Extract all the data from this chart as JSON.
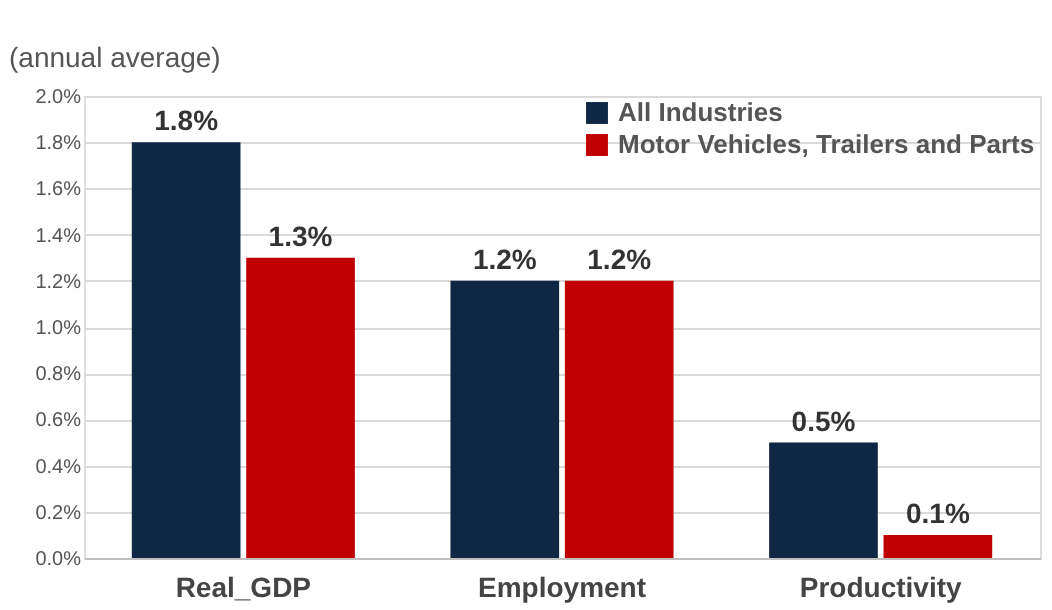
{
  "chart_data": {
    "type": "bar",
    "ylabel": "(annual average)",
    "categories": [
      "Real_GDP",
      "Employment",
      "Productivity"
    ],
    "series": [
      {
        "name": "All Industries",
        "color": "#0f2744",
        "values": [
          1.8,
          1.2,
          0.5
        ],
        "value_labels": [
          "1.8%",
          "1.2%",
          "0.5%"
        ]
      },
      {
        "name": "Motor Vehicles, Trailers and Parts",
        "color": "#c00000",
        "values": [
          1.3,
          1.2,
          0.1
        ],
        "value_labels": [
          "1.3%",
          "1.2%",
          "0.1%"
        ]
      }
    ],
    "ylim": [
      0,
      2.0
    ],
    "yticks": [
      {
        "value": 0,
        "label": "0.0%"
      },
      {
        "value": 0.2,
        "label": "0.2%"
      },
      {
        "value": 0.4,
        "label": "0.4%"
      },
      {
        "value": 0.6,
        "label": "0.6%"
      },
      {
        "value": 0.8,
        "label": "0.8%"
      },
      {
        "value": 1.0,
        "label": "1.0%"
      },
      {
        "value": 1.2,
        "label": "1.2%"
      },
      {
        "value": 1.4,
        "label": "1.4%"
      },
      {
        "value": 1.6,
        "label": "1.6%"
      },
      {
        "value": 1.8,
        "label": "1.8%"
      },
      {
        "value": 2.0,
        "label": "2.0%"
      }
    ],
    "grid": "y",
    "legend": "top right"
  }
}
